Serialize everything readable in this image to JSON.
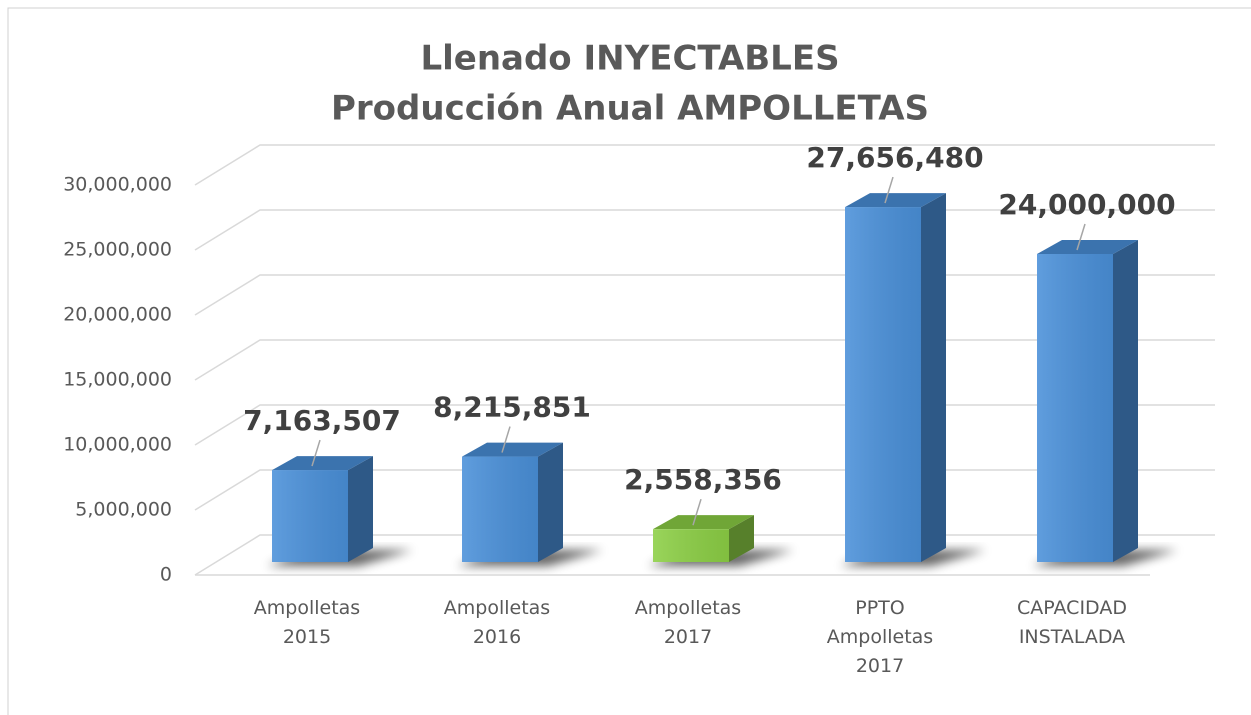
{
  "chart_data": {
    "type": "bar3d",
    "title": [
      "Llenado INYECTABLES",
      "Producción Anual AMPOLLETAS"
    ],
    "categories": [
      "Ampolletas 2015",
      "Ampolletas 2016",
      "Ampolletas 2017",
      "PPTO Ampolletas 2017",
      "CAPACIDAD INSTALADA"
    ],
    "values": [
      7163507,
      8215851,
      2558356,
      27656480,
      24000000
    ],
    "value_labels": [
      "7,163,507",
      "8,215,851",
      "2,558,356",
      "27,656,480",
      "24,000,000"
    ],
    "colors": [
      "#4a90d9",
      "#4a90d9",
      "#8ccf45",
      "#4a90d9",
      "#4a90d9"
    ],
    "ylim": [
      0,
      30000000
    ],
    "yticks": [
      0,
      {
        "value": 5000000,
        "label": "5,000,000"
      },
      {
        "value": 10000000,
        "label": "10,000,000"
      },
      {
        "value": 15000000,
        "label": "15,000,000"
      },
      {
        "value": 20000000,
        "label": "20,000,000"
      },
      {
        "value": 25000000,
        "label": "25,000,000"
      },
      {
        "value": 30000000,
        "label": "30,000,000"
      }
    ],
    "grid": true
  }
}
